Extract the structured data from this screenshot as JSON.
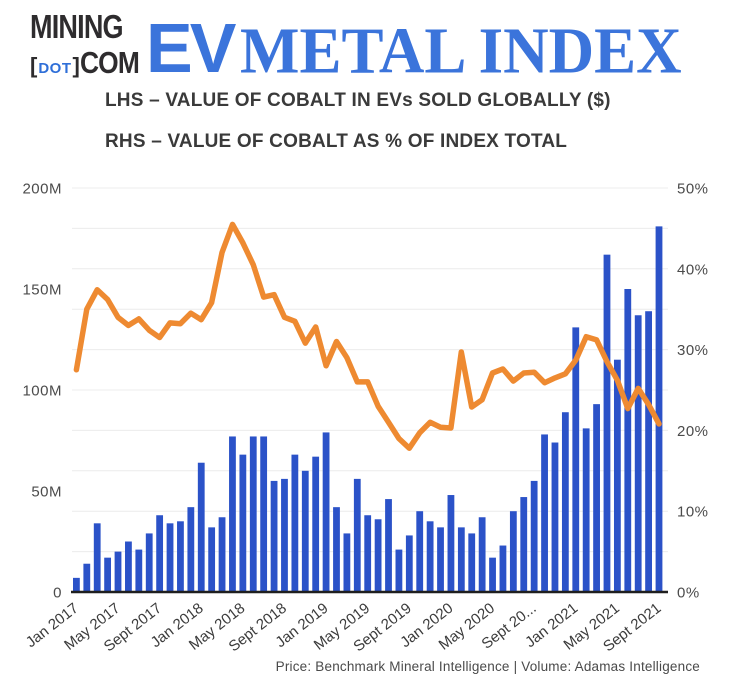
{
  "header": {
    "logo_line1": "MINING",
    "logo_bracket_open": "[",
    "logo_dot": "DOT",
    "logo_bracket_close": "]",
    "logo_com": "COM",
    "title_ev": "EV",
    "title_rest": "METAL INDEX",
    "subtitle_lhs": "LHS – VALUE OF COBALT IN EVs SOLD GLOBALLY ($)",
    "subtitle_rhs": "RHS – VALUE OF COBALT AS % OF INDEX TOTAL"
  },
  "footer": {
    "source": "Price: Benchmark Mineral Intelligence | Volume: Adamas Intelligence"
  },
  "colors": {
    "bar_blue": "#2b52c8",
    "line_orange": "#ee8a31",
    "title_blue": "#3b74db",
    "gridline": "#ececec",
    "axis_line": "#1f1f1f",
    "axis_label": "#4b4b4b",
    "x_label": "#3b3b3b"
  },
  "chart_data": {
    "type": "bar",
    "title": "EV Metal Index — cobalt",
    "xlabel": "",
    "ylabel_left": "Value of cobalt in EVs sold globally ($)",
    "ylabel_right": "Value of cobalt as % of index total",
    "left_axis": {
      "min": 0,
      "max": 200,
      "unit": "M USD",
      "ticks": [
        "0",
        "50M",
        "100M",
        "150M",
        "200M"
      ]
    },
    "right_axis": {
      "min": 0,
      "max": 50,
      "unit": "%",
      "ticks": [
        "0%",
        "10%",
        "20%",
        "30%",
        "40%",
        "50%"
      ]
    },
    "grid": "horizontal, every 5% (20M)",
    "legend_position": "none (described in subtitles)",
    "x_tick_labels": [
      "Jan 2017",
      "May 2017",
      "Sept 2017",
      "Jan 2018",
      "May 2018",
      "Sept 2018",
      "Jan 2019",
      "May 2019",
      "Sept 2019",
      "Jan 2020",
      "May 2020",
      "Sept 20...",
      "Jan 2021",
      "May 2021",
      "Sept 2021"
    ],
    "x_tick_every": 4,
    "categories": [
      "Jan 2017",
      "Feb 2017",
      "Mar 2017",
      "Apr 2017",
      "May 2017",
      "Jun 2017",
      "Jul 2017",
      "Aug 2017",
      "Sept 2017",
      "Oct 2017",
      "Nov 2017",
      "Dec 2017",
      "Jan 2018",
      "Feb 2018",
      "Mar 2018",
      "Apr 2018",
      "May 2018",
      "Jun 2018",
      "Jul 2018",
      "Aug 2018",
      "Sept 2018",
      "Oct 2018",
      "Nov 2018",
      "Dec 2018",
      "Jan 2019",
      "Feb 2019",
      "Mar 2019",
      "Apr 2019",
      "May 2019",
      "Jun 2019",
      "Jul 2019",
      "Aug 2019",
      "Sept 2019",
      "Oct 2019",
      "Nov 2019",
      "Dec 2019",
      "Jan 2020",
      "Feb 2020",
      "Mar 2020",
      "Apr 2020",
      "May 2020",
      "Jun 2020",
      "Jul 2020",
      "Aug 2020",
      "Sept 2020",
      "Oct 2020",
      "Nov 2020",
      "Dec 2020",
      "Jan 2021",
      "Feb 2021",
      "Mar 2021",
      "Apr 2021",
      "May 2021",
      "Jun 2021",
      "Jul 2021",
      "Aug 2021",
      "Sept 2021"
    ],
    "series": [
      {
        "name": "Value of cobalt in EVs sold globally ($M, LHS)",
        "type": "bar",
        "axis": "left",
        "color": "#2b52c8",
        "values": [
          7,
          14,
          34,
          17,
          20,
          25,
          21,
          29,
          38,
          34,
          35,
          42,
          64,
          32,
          37,
          77,
          68,
          77,
          77,
          55,
          56,
          68,
          60,
          67,
          79,
          42,
          29,
          56,
          38,
          36,
          46,
          21,
          28,
          40,
          35,
          32,
          48,
          32,
          29,
          37,
          17,
          23,
          40,
          47,
          55,
          78,
          74,
          89,
          131,
          81,
          93,
          167,
          115,
          150,
          137,
          139,
          181
        ]
      },
      {
        "name": "Value of cobalt as % of index total (RHS)",
        "type": "line",
        "axis": "right",
        "color": "#ee8a31",
        "values": [
          27.5,
          35.0,
          37.4,
          36.2,
          34.0,
          33.0,
          33.8,
          32.4,
          31.5,
          33.3,
          33.2,
          34.5,
          33.7,
          35.8,
          42.0,
          45.5,
          43.2,
          40.5,
          36.5,
          36.8,
          34.0,
          33.5,
          30.8,
          32.8,
          28.0,
          31.0,
          29.0,
          26.0,
          26.0,
          23.0,
          21.0,
          19.0,
          17.8,
          19.7,
          21.0,
          20.4,
          20.3,
          29.7,
          22.9,
          23.8,
          27.1,
          27.6,
          26.1,
          27.1,
          27.2,
          25.9,
          26.5,
          27.0,
          28.7,
          31.6,
          31.2,
          28.5,
          26.2,
          22.7,
          25.2,
          23.2,
          20.8
        ]
      }
    ]
  }
}
